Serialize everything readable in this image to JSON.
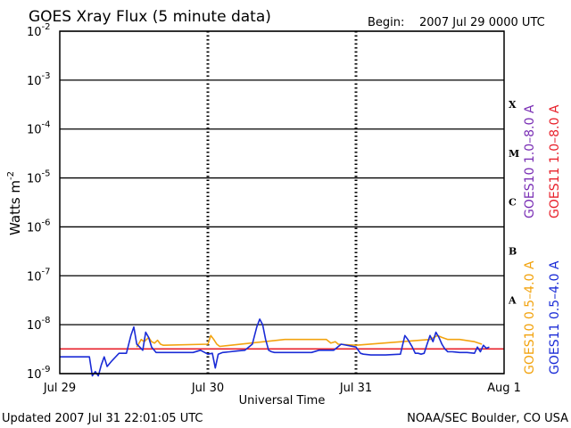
{
  "chart_data": {
    "type": "line",
    "title": "GOES Xray Flux (5 minute data)",
    "begin_label": "Begin:",
    "begin_value": "2007 Jul 29 0000 UTC",
    "ylabel": "Watts m",
    "ylabel_exp": "-2",
    "xlabel": "Universal Time",
    "y_scale": "log",
    "ylim": [
      1e-09,
      0.01
    ],
    "xlim_days": [
      0,
      3
    ],
    "grid": true,
    "x_ticks": [
      {
        "day": 0,
        "label": "Jul 29"
      },
      {
        "day": 1,
        "label": "Jul 30"
      },
      {
        "day": 2,
        "label": "Jul 31"
      },
      {
        "day": 3,
        "label": "Aug 1"
      }
    ],
    "y_ticks": [
      {
        "base": "10",
        "exp": "-9",
        "value": 1e-09
      },
      {
        "base": "10",
        "exp": "-8",
        "value": 1e-08
      },
      {
        "base": "10",
        "exp": "-7",
        "value": 1e-07
      },
      {
        "base": "10",
        "exp": "-6",
        "value": 1e-06
      },
      {
        "base": "10",
        "exp": "-5",
        "value": 1e-05
      },
      {
        "base": "10",
        "exp": "-4",
        "value": 0.0001
      },
      {
        "base": "10",
        "exp": "-3",
        "value": 0.001
      },
      {
        "base": "10",
        "exp": "-2",
        "value": 0.01
      }
    ],
    "flare_classes": [
      {
        "label": "A",
        "value": 3.2e-08
      },
      {
        "label": "B",
        "value": 3.2e-07
      },
      {
        "label": "C",
        "value": 3.2e-06
      },
      {
        "label": "M",
        "value": 3.2e-05
      },
      {
        "label": "X",
        "value": 0.00032
      }
    ],
    "legend": [
      {
        "label": "GOES10 1.0–8.0 A",
        "color": "#7a2fb5"
      },
      {
        "label": "GOES11 1.0–8.0 A",
        "color": "#e8212b"
      },
      {
        "label": "GOES10 0.5–4.0 A",
        "color": "#f2a30f"
      },
      {
        "label": "GOES11 0.5–4.0 A",
        "color": "#1a2bd6"
      }
    ],
    "series": [
      {
        "name": "GOES11 1.0–8.0 A",
        "color": "#e8212b",
        "x": [
          0.0,
          3.0
        ],
        "y": [
          3.2e-09,
          3.2e-09
        ]
      },
      {
        "name": "GOES10 0.5–4.0 A",
        "color": "#f2a30f",
        "x": [
          0.52,
          0.55,
          0.57,
          0.6,
          0.62,
          0.64,
          0.66,
          0.68,
          0.7,
          1.0,
          1.02,
          1.04,
          1.06,
          1.08,
          1.52,
          1.8,
          1.83,
          1.86,
          1.88,
          2.0,
          2.5,
          2.55,
          2.58,
          2.62,
          2.7,
          2.8,
          2.85
        ],
        "y": [
          3.5e-09,
          5e-09,
          4.5e-09,
          5.5e-09,
          4.5e-09,
          4.2e-09,
          4.8e-09,
          4e-09,
          3.8e-09,
          4e-09,
          6e-09,
          5e-09,
          4e-09,
          3.6e-09,
          5e-09,
          5e-09,
          4.2e-09,
          4.5e-09,
          4e-09,
          3.8e-09,
          5e-09,
          6e-09,
          5.5e-09,
          5e-09,
          5e-09,
          4.5e-09,
          4e-09
        ]
      },
      {
        "name": "GOES11 0.5–4.0 A",
        "color": "#1a2bd6",
        "x": [
          0.0,
          0.2,
          0.22,
          0.24,
          0.26,
          0.28,
          0.3,
          0.32,
          0.35,
          0.4,
          0.45,
          0.48,
          0.5,
          0.52,
          0.54,
          0.56,
          0.58,
          0.6,
          0.62,
          0.65,
          0.68,
          0.7,
          0.75,
          0.8,
          0.85,
          0.9,
          0.95,
          1.0,
          1.03,
          1.05,
          1.07,
          1.1,
          1.15,
          1.2,
          1.25,
          1.3,
          1.33,
          1.35,
          1.37,
          1.39,
          1.41,
          1.43,
          1.45,
          1.5,
          1.6,
          1.7,
          1.75,
          1.85,
          1.9,
          2.0,
          2.03,
          2.05,
          2.1,
          2.2,
          2.3,
          2.33,
          2.35,
          2.38,
          2.4,
          2.42,
          2.44,
          2.46,
          2.48,
          2.5,
          2.52,
          2.54,
          2.56,
          2.58,
          2.6,
          2.62,
          2.65,
          2.7,
          2.75,
          2.8,
          2.82,
          2.84,
          2.86,
          2.88,
          2.9
        ],
        "y": [
          2.2e-09,
          2.2e-09,
          9e-10,
          1.1e-09,
          9e-10,
          1.5e-09,
          2.2e-09,
          1.4e-09,
          1.8e-09,
          2.6e-09,
          2.6e-09,
          6e-09,
          9e-09,
          4e-09,
          3.5e-09,
          3e-09,
          7e-09,
          5.5e-09,
          3.5e-09,
          2.7e-09,
          2.7e-09,
          2.7e-09,
          2.7e-09,
          2.7e-09,
          2.7e-09,
          2.7e-09,
          3e-09,
          2.5e-09,
          2.6e-09,
          1.3e-09,
          2.5e-09,
          2.7e-09,
          2.8e-09,
          2.9e-09,
          3e-09,
          4e-09,
          9e-09,
          1.3e-08,
          1e-08,
          5e-09,
          3e-09,
          2.8e-09,
          2.7e-09,
          2.7e-09,
          2.7e-09,
          2.7e-09,
          3e-09,
          3e-09,
          4e-09,
          3.5e-09,
          2.6e-09,
          2.5e-09,
          2.4e-09,
          2.4e-09,
          2.5e-09,
          6e-09,
          5e-09,
          3.5e-09,
          2.6e-09,
          2.6e-09,
          2.5e-09,
          2.6e-09,
          4e-09,
          6e-09,
          4.5e-09,
          7e-09,
          5.5e-09,
          4e-09,
          3.2e-09,
          2.8e-09,
          2.8e-09,
          2.7e-09,
          2.7e-09,
          2.6e-09,
          3.5e-09,
          2.8e-09,
          3.8e-09,
          3.3e-09,
          3.5e-09
        ]
      }
    ]
  },
  "footer": {
    "updated": "Updated 2007 Jul 31 22:01:05 UTC",
    "credit": "NOAA/SEC Boulder, CO USA"
  }
}
